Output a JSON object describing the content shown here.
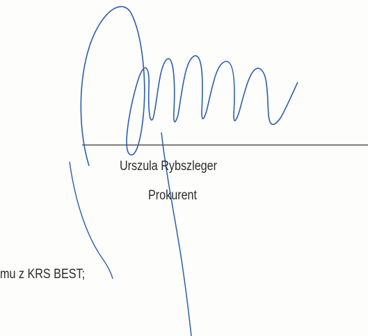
{
  "signature_block": {
    "name": "Urszula Rybszleger",
    "role": "Prokurent"
  },
  "body": {
    "fragment": "mu z KRS BEST;"
  }
}
